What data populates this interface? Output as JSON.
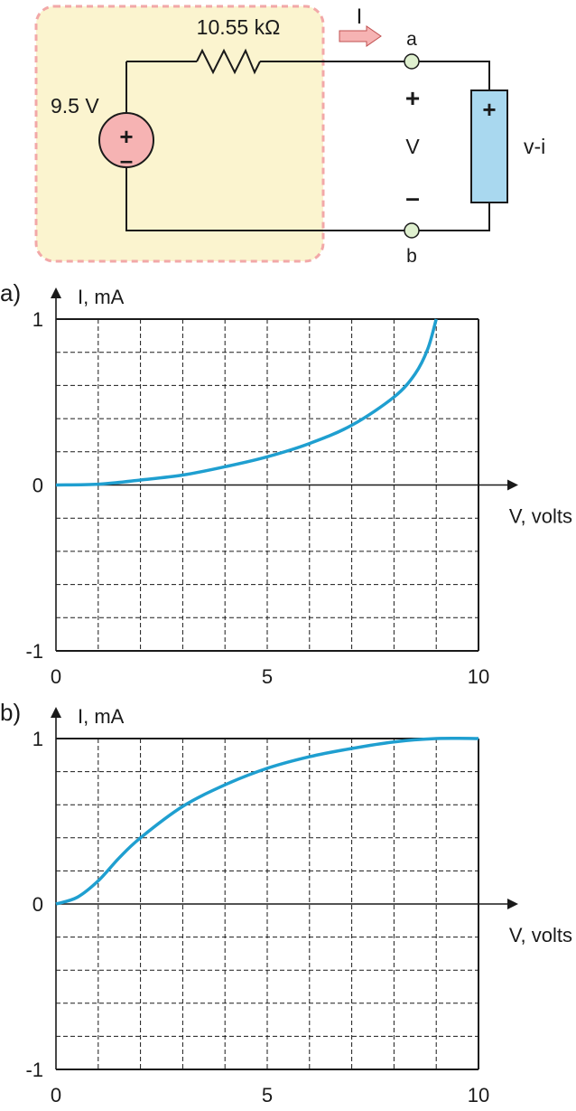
{
  "circuit": {
    "source_voltage": "9.5 V",
    "source_plus": "+",
    "source_minus": "–",
    "resistor": "10.55 kΩ",
    "current_label": "I",
    "terminal_a": "a",
    "terminal_b": "b",
    "voltage_plus": "+",
    "voltage_label": "V",
    "voltage_minus": "–",
    "device_plus": "+",
    "device_label": "v-i",
    "colors": {
      "thevenin_box": "#fbf4cf",
      "thevenin_border": "#f2a8a8",
      "source_fill": "#f6b3b3",
      "device_fill": "#a9d8ef",
      "terminal_fill": "#dff0cf",
      "arrow_fill": "#f6b3b3"
    }
  },
  "chart_data": [
    {
      "type": "line",
      "panel_label": "a)",
      "ylabel": "I, mA",
      "xlabel": "V, volts",
      "xlim": [
        0,
        10
      ],
      "ylim": [
        -1,
        1
      ],
      "xticks": [
        "0",
        "5",
        "10"
      ],
      "yticks": [
        "1",
        "0",
        "-1"
      ],
      "grid": true,
      "series": [
        {
          "color": "#1f9fd0",
          "x": [
            0,
            1,
            2,
            3,
            4,
            5,
            6,
            7,
            8,
            8.5,
            8.8,
            9.0
          ],
          "y": [
            0,
            0.005,
            0.03,
            0.06,
            0.11,
            0.17,
            0.25,
            0.36,
            0.53,
            0.67,
            0.82,
            1.0
          ]
        }
      ]
    },
    {
      "type": "line",
      "panel_label": "b)",
      "ylabel": "I, mA",
      "xlabel": "V, volts",
      "xlim": [
        0,
        10
      ],
      "ylim": [
        -1,
        1
      ],
      "xticks": [
        "0",
        "5",
        "10"
      ],
      "yticks": [
        "1",
        "0",
        "-1"
      ],
      "grid": true,
      "series": [
        {
          "color": "#1f9fd0",
          "x": [
            0,
            0.5,
            1,
            1.5,
            2,
            3,
            4,
            5,
            6,
            7,
            8,
            9,
            10
          ],
          "y": [
            0,
            0.04,
            0.14,
            0.28,
            0.4,
            0.59,
            0.72,
            0.82,
            0.89,
            0.94,
            0.98,
            1.0,
            1.0
          ]
        }
      ]
    }
  ]
}
